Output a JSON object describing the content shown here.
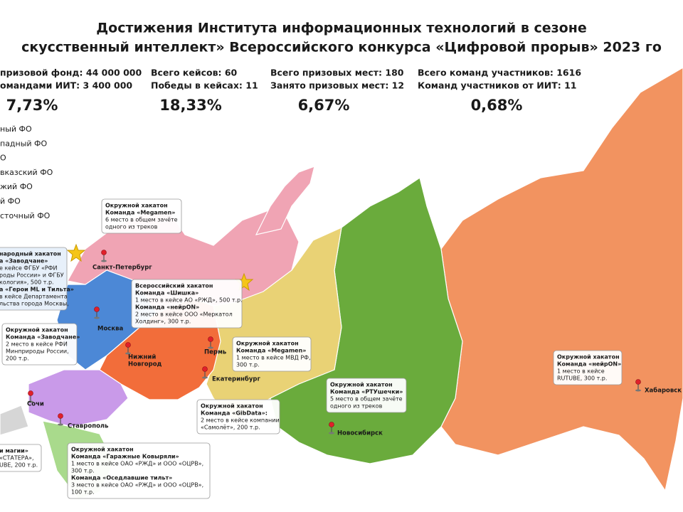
{
  "header": {
    "title": [
      "Достижения Института информационных технологий в сезоне",
      "скусственный интеллект» Всероссийского конкурса «Цифровой прорыв» 2023 го"
    ]
  },
  "stats": [
    {
      "lines": [
        "призовой фонд: 44 000 000",
        "омандами ИИТ: 3 400 000"
      ],
      "percent": "7,73%"
    },
    {
      "lines": [
        "Всего кейсов: 60",
        "Победы в кейсах: 11"
      ],
      "percent": "18,33%"
    },
    {
      "lines": [
        "Всего призовых мест: 180",
        "Занято призовых мест: 12"
      ],
      "percent": "6,67%"
    },
    {
      "lines": [
        "Всего команд участников: 1616",
        "Команд участников от ИИТ: 11"
      ],
      "percent": "0,68%"
    }
  ],
  "legend": [
    "ный ФО",
    "падный ФО",
    "О",
    "вказский ФО",
    "жий ФО",
    "й ФО",
    "сточный ФО"
  ],
  "cities": [
    {
      "lines": [
        "Санкт-Петербург"
      ]
    },
    {
      "lines": [
        "Москва"
      ]
    },
    {
      "lines": [
        "Нижний",
        "Новгород"
      ]
    },
    {
      "lines": [
        "Пермь"
      ]
    },
    {
      "lines": [
        "Екатеринбург"
      ]
    },
    {
      "lines": [
        "Сочи"
      ]
    },
    {
      "lines": [
        "Ставрополь"
      ]
    },
    {
      "lines": [
        "Новосибирск"
      ]
    },
    {
      "lines": [
        "Хабаровск"
      ]
    }
  ],
  "callouts": [
    {
      "event": "Окружной хакатон",
      "teams": [
        {
          "team": "Команда «Megamen»",
          "result": [
            "6 место в общем зачёте",
            "одного из треков"
          ]
        }
      ]
    },
    {
      "event": "народный хакатон",
      "teams": [
        {
          "team": "а «Заводчане»",
          "result": [
            "е кейсе ФГБУ «РФИ",
            "роды России» и ФГБУ",
            "кология», 500 т.р."
          ]
        },
        {
          "team": "а «Герои ML и Тильта»",
          "result": [
            "в кейсе Департамента",
            "льства города Москвы,"
          ]
        }
      ]
    },
    {
      "event": "Всероссийский хакатон",
      "teams": [
        {
          "team": "Команда «Шишка»",
          "result": [
            "1 место в кейсе АО «РЖД», 500 т.р."
          ]
        },
        {
          "team": "Команда «нейрON»",
          "result": [
            "2 место в кейсе ООО «Меркатол",
            "Холдинг», 300 т.р."
          ]
        }
      ]
    },
    {
      "event": "Окружной хакатон",
      "teams": [
        {
          "team": "Команда «Заводчане»",
          "result": [
            "2 место в кейсе РФИ",
            "Минприроды России,",
            "200 т.р."
          ]
        }
      ]
    },
    {
      "event": "Окружной хакатон",
      "teams": [
        {
          "team": "Команда «Megamen»",
          "result": [
            "1 место в кейсе МВД РФ,",
            "300 т.р."
          ]
        }
      ]
    },
    {
      "event": "Окружной хакатон",
      "teams": [
        {
          "team": "Команда «GibData»:",
          "result": [
            "2 место в кейсе компании",
            "«Самолёт», 200 т.р."
          ]
        }
      ]
    },
    {
      "event": "Окружной хакатон",
      "teams": [
        {
          "team": "Команда «РТУшечки»",
          "result": [
            "5 место в общем зачёте",
            "одного из треков"
          ]
        }
      ]
    },
    {
      "event": "Окружной хакатон",
      "teams": [
        {
          "team": "Команда «нейрON»",
          "result": [
            "1 место в кейсе",
            "RUTUBE, 300 т.р."
          ]
        }
      ]
    },
    {
      "event": "Окружной хакатон",
      "teams": [
        {
          "team": "Команда «Гаражные Ковыряли»",
          "result": [
            "1 место в кейсе ОАО «РЖД» и ООО «ОЦРВ»,",
            "300 т.р."
          ]
        },
        {
          "team": "Команда «Оседлавшие тильт»",
          "result": [
            "3 место в кейсе ОАО «РЖД» и ООО «ОЦРВ»,",
            "100 т.р."
          ]
        }
      ]
    },
    {
      "teams": [
        {
          "team": "и магии»",
          "result": [
            "«СТАТЕРА»,",
            "UBE, 200 т.р."
          ]
        }
      ]
    }
  ]
}
